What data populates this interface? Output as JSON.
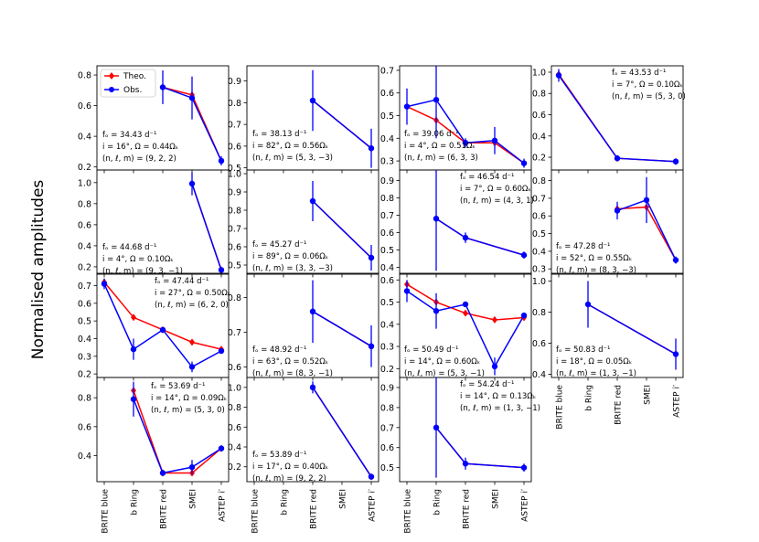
{
  "figure": {
    "ylabel": "Normalised amplitudes",
    "categories": [
      "BRITE blue",
      "b Ring",
      "BRITE red",
      "SMEI",
      "ASTEP i′"
    ],
    "legend": {
      "theo": "Theo.",
      "obs": "Obs.",
      "location": "top-left of first panel"
    },
    "colors": {
      "theo": "#ff0000",
      "obs": "#0000ff"
    }
  },
  "chart_data": [
    {
      "type": "line",
      "text": [
        "fₒ = 34.43 d⁻¹",
        "i = 16°, Ω = 0.44Ωₖ",
        "(n, ℓ, m) = (9, 2, 2)"
      ],
      "ylim": [
        0.18,
        0.86
      ],
      "yticks": [
        0.2,
        0.4,
        0.6,
        0.8
      ],
      "ytick_labels": [
        "0.2",
        "0.4",
        "0.6",
        "0.8"
      ],
      "series": [
        {
          "name": "Theo.",
          "x": [
            2,
            3,
            4
          ],
          "values": [
            0.72,
            0.67,
            0.24
          ]
        },
        {
          "name": "Obs.",
          "x": [
            2,
            3,
            4
          ],
          "values": [
            0.72,
            0.65,
            0.24
          ],
          "err": [
            0.11,
            0.14,
            0.03
          ]
        }
      ]
    },
    {
      "type": "line",
      "text": [
        "fₒ = 38.13 d⁻¹",
        "i = 82°, Ω = 0.56Ωₖ",
        "(n, ℓ, m) = (5, 3, −3)"
      ],
      "ylim": [
        0.49,
        0.97
      ],
      "yticks": [
        0.5,
        0.6,
        0.7,
        0.8,
        0.9
      ],
      "ytick_labels": [
        "0.5",
        "0.6",
        "0.7",
        "0.8",
        "0.9"
      ],
      "series": [
        {
          "name": "Theo.",
          "x": [
            2,
            4
          ],
          "values": [
            0.81,
            0.59
          ]
        },
        {
          "name": "Obs.",
          "x": [
            2,
            4
          ],
          "values": [
            0.81,
            0.59
          ],
          "err": [
            0.14,
            0.09
          ]
        }
      ]
    },
    {
      "type": "line",
      "text": [
        "fₒ = 39.06 d⁻¹",
        "i = 4°, Ω = 0.51Ωₖ",
        "(n, ℓ, m) = (6, 3, 3)"
      ],
      "ylim": [
        0.26,
        0.72
      ],
      "yticks": [
        0.3,
        0.4,
        0.5,
        0.6,
        0.7
      ],
      "ytick_labels": [
        "0.3",
        "0.4",
        "0.5",
        "0.6",
        "0.7"
      ],
      "series": [
        {
          "name": "Theo.",
          "x": [
            0,
            1,
            2,
            3,
            4
          ],
          "values": [
            0.54,
            0.48,
            0.38,
            0.38,
            0.29
          ]
        },
        {
          "name": "Obs.",
          "x": [
            0,
            1,
            2,
            3,
            4
          ],
          "values": [
            0.54,
            0.57,
            0.38,
            0.39,
            0.29
          ],
          "err": [
            0.08,
            0.17,
            0.02,
            0.06,
            0.02
          ]
        }
      ]
    },
    {
      "type": "line",
      "text": [
        "fₒ = 43.53 d⁻¹",
        "i = 7°, Ω = 0.10Ωₖ",
        "(n, ℓ, m) = (5, 3, 0)"
      ],
      "ylim": [
        0.08,
        1.06
      ],
      "yticks": [
        0.2,
        0.4,
        0.6,
        0.8,
        1.0
      ],
      "ytick_labels": [
        "0.2",
        "0.4",
        "0.6",
        "0.8",
        "1.0"
      ],
      "series": [
        {
          "name": "Theo.",
          "x": [
            0,
            2,
            4
          ],
          "values": [
            0.98,
            0.19,
            0.16
          ]
        },
        {
          "name": "Obs.",
          "x": [
            0,
            2,
            4
          ],
          "values": [
            0.97,
            0.19,
            0.16
          ],
          "err": [
            0.06,
            0.01,
            0.01
          ]
        }
      ]
    },
    {
      "type": "line",
      "text": [
        "fₒ = 44.68 d⁻¹",
        "i = 4°, Ω = 0.10Ωₖ",
        "(n, ℓ, m) = (9, 3, −1)"
      ],
      "ylim": [
        0.13,
        1.12
      ],
      "yticks": [
        0.2,
        0.4,
        0.6,
        0.8,
        1.0
      ],
      "ytick_labels": [
        "0.2",
        "0.4",
        "0.6",
        "0.8",
        "1.0"
      ],
      "series": [
        {
          "name": "Theo.",
          "x": [
            3,
            4
          ],
          "values": [
            0.99,
            0.17
          ]
        },
        {
          "name": "Obs.",
          "x": [
            3,
            4
          ],
          "values": [
            0.99,
            0.17
          ],
          "err": [
            0.11,
            0.01
          ]
        }
      ]
    },
    {
      "type": "line",
      "text": [
        "fₒ = 45.27 d⁻¹",
        "i = 89°, Ω = 0.06Ωₖ",
        "(n, ℓ, m) = (3, 3, −3)"
      ],
      "ylim": [
        0.45,
        1.02
      ],
      "yticks": [
        0.5,
        0.6,
        0.7,
        0.8,
        0.9,
        1.0
      ],
      "ytick_labels": [
        "0.5",
        "0.6",
        "0.7",
        "0.8",
        "0.9",
        "1.0"
      ],
      "series": [
        {
          "name": "Theo.",
          "x": [
            2,
            4
          ],
          "values": [
            0.85,
            0.54
          ]
        },
        {
          "name": "Obs.",
          "x": [
            2,
            4
          ],
          "values": [
            0.85,
            0.54
          ],
          "err": [
            0.11,
            0.07
          ]
        }
      ]
    },
    {
      "type": "line",
      "text": [
        "fₒ = 46.54 d⁻¹",
        "i = 7°, Ω = 0.60Ωₖ",
        "(n, ℓ, m) = (4, 3, 1)"
      ],
      "ylim": [
        0.36,
        0.96
      ],
      "yticks": [
        0.4,
        0.5,
        0.6,
        0.7,
        0.8,
        0.9
      ],
      "ytick_labels": [
        "0.4",
        "0.5",
        "0.6",
        "0.7",
        "0.8",
        "0.9"
      ],
      "series": [
        {
          "name": "Theo.",
          "x": [
            1,
            2,
            4
          ],
          "values": [
            0.68,
            0.57,
            0.47
          ]
        },
        {
          "name": "Obs.",
          "x": [
            1,
            2,
            4
          ],
          "values": [
            0.68,
            0.57,
            0.47
          ],
          "err": [
            0.3,
            0.03,
            0.02
          ]
        }
      ]
    },
    {
      "type": "line",
      "text": [
        "fₒ = 47.28 d⁻¹",
        "i = 52°, Ω = 0.55Ωₖ",
        "(n, ℓ, m) = (8, 3, −3)"
      ],
      "ylim": [
        0.27,
        0.86
      ],
      "yticks": [
        0.3,
        0.4,
        0.5,
        0.6,
        0.7,
        0.8
      ],
      "ytick_labels": [
        "0.3",
        "0.4",
        "0.5",
        "0.6",
        "0.7",
        "0.8"
      ],
      "series": [
        {
          "name": "Theo.",
          "x": [
            2,
            3,
            4
          ],
          "values": [
            0.64,
            0.65,
            0.35
          ]
        },
        {
          "name": "Obs.",
          "x": [
            2,
            3,
            4
          ],
          "values": [
            0.63,
            0.69,
            0.35
          ],
          "err": [
            0.05,
            0.13,
            0.02
          ]
        }
      ]
    },
    {
      "type": "line",
      "text": [
        "fₒ = 47.44 d⁻¹",
        "i = 27°, Ω = 0.50Ωₖ",
        "(n, ℓ, m) = (6, 2, 0)"
      ],
      "ylim": [
        0.18,
        0.77
      ],
      "yticks": [
        0.2,
        0.3,
        0.4,
        0.5,
        0.6,
        0.7
      ],
      "ytick_labels": [
        "0.2",
        "0.3",
        "0.4",
        "0.5",
        "0.6",
        "0.7"
      ],
      "series": [
        {
          "name": "Theo.",
          "x": [
            0,
            1,
            2,
            3,
            4
          ],
          "values": [
            0.72,
            0.52,
            0.45,
            0.38,
            0.34
          ]
        },
        {
          "name": "Obs.",
          "x": [
            0,
            1,
            2,
            3,
            4
          ],
          "values": [
            0.71,
            0.34,
            0.45,
            0.24,
            0.33
          ],
          "err": [
            0.03,
            0.06,
            0.01,
            0.03,
            0.01
          ]
        }
      ]
    },
    {
      "type": "line",
      "text": [
        "fₒ = 48.92 d⁻¹",
        "i = 63°, Ω = 0.52Ωₖ",
        "(n, ℓ, m) = (8, 3, −1)"
      ],
      "ylim": [
        0.57,
        0.87
      ],
      "yticks": [
        0.6,
        0.7,
        0.8
      ],
      "ytick_labels": [
        "0.6",
        "0.7",
        "0.8"
      ],
      "series": [
        {
          "name": "Theo.",
          "x": [
            2,
            4
          ],
          "values": [
            0.76,
            0.66
          ]
        },
        {
          "name": "Obs.",
          "x": [
            2,
            4
          ],
          "values": [
            0.76,
            0.66
          ],
          "err": [
            0.09,
            0.06
          ]
        }
      ]
    },
    {
      "type": "line",
      "text": [
        "fₒ = 50.49 d⁻¹",
        "i = 14°, Ω = 0.60Ωₖ",
        "(n, ℓ, m) = (5, 3, −1)"
      ],
      "ylim": [
        0.16,
        0.63
      ],
      "yticks": [
        0.2,
        0.3,
        0.4,
        0.5,
        0.6
      ],
      "ytick_labels": [
        "0.2",
        "0.3",
        "0.4",
        "0.5",
        "0.6"
      ],
      "series": [
        {
          "name": "Theo.",
          "x": [
            0,
            1,
            2,
            3,
            4
          ],
          "values": [
            0.58,
            0.5,
            0.45,
            0.42,
            0.43
          ]
        },
        {
          "name": "Obs.",
          "x": [
            0,
            1,
            2,
            3,
            4
          ],
          "values": [
            0.55,
            0.46,
            0.49,
            0.21,
            0.44
          ],
          "err": [
            0.05,
            0.08,
            0.01,
            0.04,
            0.01
          ]
        }
      ]
    },
    {
      "type": "line",
      "text": [
        "fₒ = 50.83 d⁻¹",
        "i = 18°, Ω = 0.05Ωₖ",
        "(n, ℓ, m) = (1, 3, −1)"
      ],
      "ylim": [
        0.38,
        1.05
      ],
      "yticks": [
        0.4,
        0.6,
        0.8,
        1.0
      ],
      "ytick_labels": [
        "0.4",
        "0.6",
        "0.8",
        "1.0"
      ],
      "series": [
        {
          "name": "Theo.",
          "x": [
            1,
            4
          ],
          "values": [
            0.85,
            0.53
          ]
        },
        {
          "name": "Obs.",
          "x": [
            1,
            4
          ],
          "values": [
            0.85,
            0.53
          ],
          "err": [
            0.15,
            0.1
          ]
        }
      ]
    },
    {
      "type": "line",
      "text": [
        "fₒ = 53.69 d⁻¹",
        "i = 14°, Ω = 0.09Ωₖ",
        "(n, ℓ, m) = (5, 3, 0)"
      ],
      "ylim": [
        0.22,
        0.94
      ],
      "yticks": [
        0.4,
        0.6,
        0.8
      ],
      "ytick_labels": [
        "0.4",
        "0.6",
        "0.8"
      ],
      "series": [
        {
          "name": "Theo.",
          "x": [
            1,
            2,
            3,
            4
          ],
          "values": [
            0.85,
            0.28,
            0.28,
            0.45
          ]
        },
        {
          "name": "Obs.",
          "x": [
            1,
            2,
            3,
            4
          ],
          "values": [
            0.79,
            0.28,
            0.32,
            0.45
          ],
          "err": [
            0.12,
            0.01,
            0.05,
            0.02
          ]
        }
      ]
    },
    {
      "type": "line",
      "text": [
        "fₒ = 53.89 d⁻¹",
        "i = 17°, Ω = 0.40Ωₖ",
        "(n, ℓ, m) = (9, 2, 2)"
      ],
      "ylim": [
        0.05,
        1.1
      ],
      "yticks": [
        0.2,
        0.4,
        0.6,
        0.8,
        1.0
      ],
      "ytick_labels": [
        "0.2",
        "0.4",
        "0.6",
        "0.8",
        "1.0"
      ],
      "series": [
        {
          "name": "Theo.",
          "x": [
            2,
            4
          ],
          "values": [
            1.0,
            0.1
          ]
        },
        {
          "name": "Obs.",
          "x": [
            2,
            4
          ],
          "values": [
            1.0,
            0.1
          ],
          "err": [
            0.06,
            0.02
          ]
        }
      ]
    },
    {
      "type": "line",
      "text": [
        "fₒ = 54.24 d⁻¹",
        "i = 14°, Ω = 0.13Ωₖ",
        "(n, ℓ, m) = (1, 3, −1)"
      ],
      "ylim": [
        0.43,
        0.95
      ],
      "yticks": [
        0.5,
        0.6,
        0.7,
        0.8,
        0.9
      ],
      "ytick_labels": [
        "0.5",
        "0.6",
        "0.7",
        "0.8",
        "0.9"
      ],
      "series": [
        {
          "name": "Theo.",
          "x": [
            1,
            2,
            4
          ],
          "values": [
            0.7,
            0.52,
            0.5
          ]
        },
        {
          "name": "Obs.",
          "x": [
            1,
            2,
            4
          ],
          "values": [
            0.7,
            0.52,
            0.5
          ],
          "err": [
            0.25,
            0.03,
            0.02
          ]
        }
      ]
    }
  ]
}
